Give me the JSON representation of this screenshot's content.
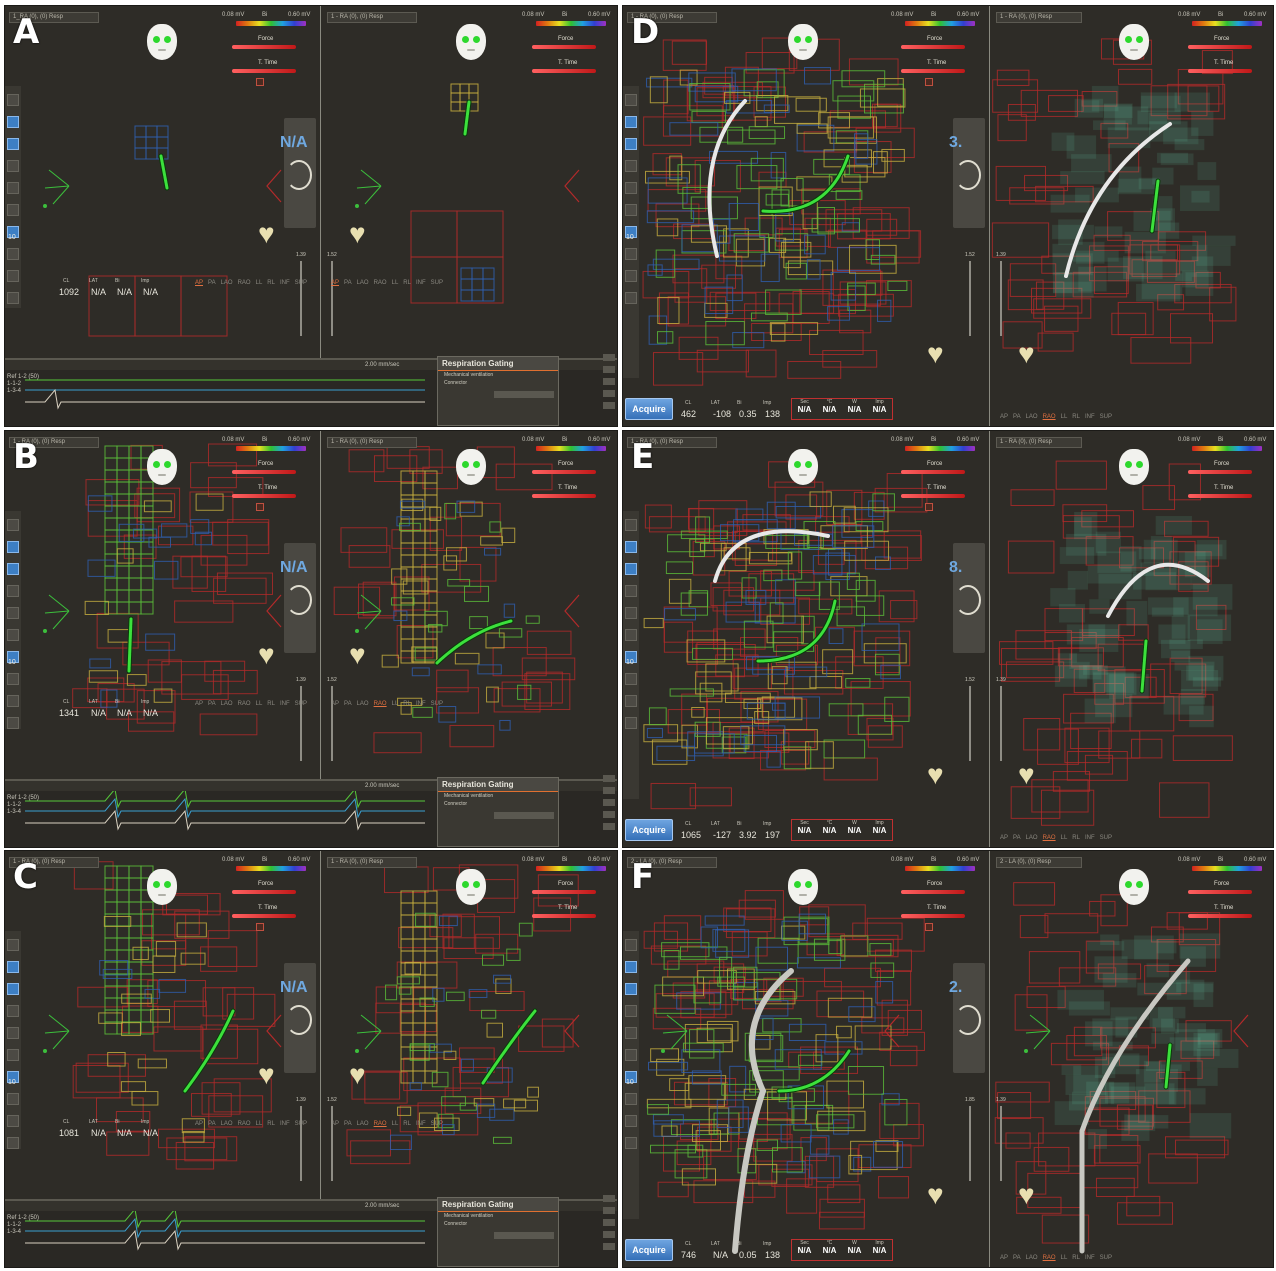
{
  "panels": [
    {
      "letter": "A",
      "left_view": {
        "selector": "1_RA (0), (0) Resp",
        "mv_min": "0.08 mV",
        "mv_bi": "Bi",
        "mv_max": "0.60 mV",
        "meter1": "Force",
        "meter2": "T. Time",
        "na_big": "N/A",
        "slider_val": "1.39",
        "readout_headers": [
          "CL",
          "LAT",
          "Bi",
          "Imp"
        ],
        "readout_values": [
          "1092",
          "N/A",
          "N/A",
          "N/A"
        ],
        "bottom_labels": [
          "AP",
          "PA",
          "LAO",
          "RAO",
          "LL",
          "RL",
          "INF",
          "SUP"
        ],
        "bottom_highlight": "AP"
      },
      "right_view": {
        "selector": "1 - RA (0), (0) Resp",
        "mv_min": "0.08 mV",
        "mv_bi": "Bi",
        "mv_max": "0.60 mV",
        "meter1": "Force",
        "meter2": "T. Time",
        "slider_val": "1.52",
        "bottom_labels": [
          "AP",
          "PA",
          "LAO",
          "RAO",
          "LL",
          "RL",
          "INF",
          "SUP"
        ],
        "bottom_highlight": "AP"
      },
      "ecg": {
        "window": "2.00 mm/sec",
        "leads": [
          "Ref 1-2 (50)",
          "1-1-2",
          "1-3-4"
        ]
      },
      "respiration": {
        "title": "Respiration Gating",
        "option": "Mechanical ventilation",
        "connector": "Connector"
      }
    },
    {
      "letter": "B",
      "left_view": {
        "selector": "1 - RA (0), (0) Resp",
        "mv_min": "0.08 mV",
        "mv_bi": "Bi",
        "mv_max": "0.60 mV",
        "meter1": "Force",
        "meter2": "T. Time",
        "na_big": "N/A",
        "slider_val": "1.39",
        "readout_headers": [
          "CL",
          "LAT",
          "Bi",
          "Imp"
        ],
        "readout_values": [
          "1341",
          "N/A",
          "N/A",
          "N/A"
        ],
        "bottom_labels": [
          "AP",
          "PA",
          "LAO",
          "RAO",
          "LL",
          "RL",
          "INF",
          "SUP"
        ],
        "bottom_highlight": ""
      },
      "right_view": {
        "selector": "1 - RA (0), (0) Resp",
        "mv_min": "0.08 mV",
        "mv_bi": "Bi",
        "mv_max": "0.60 mV",
        "meter1": "Force",
        "meter2": "T. Time",
        "slider_val": "1.52",
        "bottom_labels": [
          "AP",
          "PA",
          "LAO",
          "RAO",
          "LL",
          "RL",
          "INF",
          "SUP"
        ],
        "bottom_highlight": "RAO"
      },
      "ecg": {
        "window": "2.00 mm/sec",
        "leads": [
          "Ref 1-2 (50)",
          "1-1-2",
          "1-3-4"
        ]
      },
      "respiration": {
        "title": "Respiration Gating",
        "option": "Mechanical ventilation",
        "connector": "Connector"
      }
    },
    {
      "letter": "C",
      "left_view": {
        "selector": "1 - RA (0), (0) Resp",
        "mv_min": "0.08 mV",
        "mv_bi": "Bi",
        "mv_max": "0.60 mV",
        "meter1": "Force",
        "meter2": "T. Time",
        "na_big": "N/A",
        "slider_val": "1.39",
        "readout_headers": [
          "CL",
          "LAT",
          "Bi",
          "Imp"
        ],
        "readout_values": [
          "1081",
          "N/A",
          "N/A",
          "N/A"
        ],
        "bottom_labels": [
          "AP",
          "PA",
          "LAO",
          "RAO",
          "LL",
          "RL",
          "INF",
          "SUP"
        ],
        "bottom_highlight": ""
      },
      "right_view": {
        "selector": "1 - RA (0), (0) Resp",
        "mv_min": "0.08 mV",
        "mv_bi": "Bi",
        "mv_max": "0.60 mV",
        "meter1": "Force",
        "meter2": "T. Time",
        "slider_val": "1.52",
        "bottom_labels": [
          "AP",
          "PA",
          "LAO",
          "RAO",
          "LL",
          "RL",
          "INF",
          "SUP"
        ],
        "bottom_highlight": "RAO"
      },
      "ecg": {
        "window": "2.00 mm/sec",
        "leads": [
          "Ref 1-2 (50)",
          "1-1-2",
          "1-3-4"
        ]
      },
      "respiration": {
        "title": "Respiration Gating",
        "option": "Mechanical ventilation",
        "connector": "Connector"
      }
    },
    {
      "letter": "D",
      "left_view": {
        "selector": "1 - RA (0), (0) Resp",
        "mv_min": "0.08 mV",
        "mv_bi": "Bi",
        "mv_max": "0.60 mV",
        "meter1": "Force",
        "meter2": "T. Time",
        "na_big": "3.",
        "slider_val": "1.52",
        "readout_headers": [
          "CL",
          "LAT",
          "Bi",
          "Imp"
        ],
        "readout_values": [
          "462",
          "-108",
          "0.35",
          "138"
        ],
        "acquire": "Acquire",
        "na_box": {
          "headers": [
            "Sec",
            "°C",
            "W",
            "Imp"
          ],
          "values": [
            "N/A",
            "N/A",
            "N/A",
            "N/A"
          ]
        }
      },
      "right_view": {
        "selector": "1 - RA (0), (0) Resp",
        "mv_min": "0.08 mV",
        "mv_bi": "Bi",
        "mv_max": "0.60 mV",
        "meter1": "Force",
        "meter2": "T. Time",
        "slider_val": "1.39",
        "bottom_labels": [
          "AP",
          "PA",
          "LAO",
          "RAO",
          "LL",
          "RL",
          "INF",
          "SUP"
        ],
        "bottom_highlight": "RAO"
      }
    },
    {
      "letter": "E",
      "left_view": {
        "selector": "1 - RA (0), (0) Resp",
        "mv_min": "0.08 mV",
        "mv_bi": "Bi",
        "mv_max": "0.60 mV",
        "meter1": "Force",
        "meter2": "T. Time",
        "na_big": "8.",
        "slider_val": "1.52",
        "readout_headers": [
          "CL",
          "LAT",
          "Bi",
          "Imp"
        ],
        "readout_values": [
          "1065",
          "-127",
          "3.92",
          "197"
        ],
        "acquire": "Acquire",
        "na_box": {
          "headers": [
            "Sec",
            "°C",
            "W",
            "Imp"
          ],
          "values": [
            "N/A",
            "N/A",
            "N/A",
            "N/A"
          ]
        }
      },
      "right_view": {
        "selector": "1 - RA (0), (0) Resp",
        "mv_min": "0.08 mV",
        "mv_bi": "Bi",
        "mv_max": "0.60 mV",
        "meter1": "Force",
        "meter2": "T. Time",
        "slider_val": "1.39",
        "bottom_labels": [
          "AP",
          "PA",
          "LAO",
          "RAO",
          "LL",
          "RL",
          "INF",
          "SUP"
        ],
        "bottom_highlight": "RAO"
      }
    },
    {
      "letter": "F",
      "left_view": {
        "selector": "2 - LA (0), (0) Resp",
        "mv_min": "0.08 mV",
        "mv_bi": "Bi",
        "mv_max": "0.60 mV",
        "meter1": "Force",
        "meter2": "T. Time",
        "na_big": "2.",
        "slider_val": "1.85",
        "readout_headers": [
          "CL",
          "LAT",
          "Bi",
          "Imp"
        ],
        "readout_values": [
          "746",
          "N/A",
          "0.05",
          "138"
        ],
        "acquire": "Acquire",
        "na_box": {
          "headers": [
            "Sec",
            "°C",
            "W",
            "Imp"
          ],
          "values": [
            "N/A",
            "N/A",
            "N/A",
            "N/A"
          ]
        }
      },
      "right_view": {
        "selector": "2 - LA (0), (0) Resp",
        "mv_min": "0.08 mV",
        "mv_bi": "Bi",
        "mv_max": "0.60 mV",
        "meter1": "Force",
        "meter2": "T. Time",
        "slider_val": "1.39",
        "bottom_labels": [
          "AP",
          "PA",
          "LAO",
          "RAO",
          "LL",
          "RL",
          "INF",
          "SUP"
        ],
        "bottom_highlight": "RAO"
      }
    }
  ],
  "colors": {
    "bg": "#2e2c27",
    "grid_red": "#b32a2a",
    "grid_blue": "#2f5fb0",
    "grid_green": "#5bbf3a",
    "grid_yellow": "#c8b040",
    "catheter": "#3ce03c",
    "sheath": "#e8e8e8",
    "accent": "#e07030"
  }
}
